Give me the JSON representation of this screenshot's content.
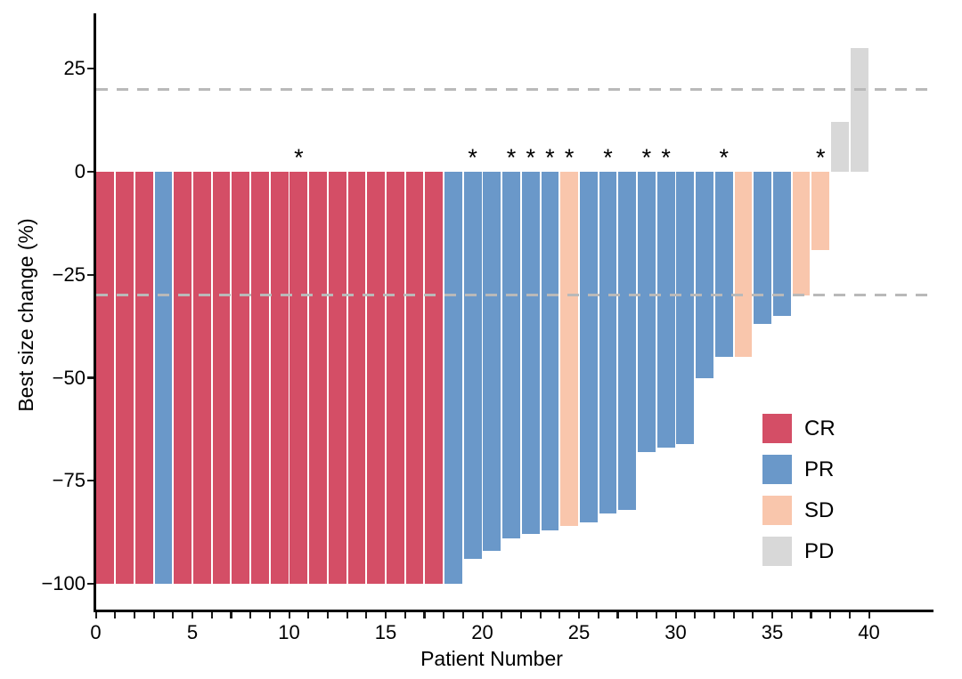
{
  "chart_data": {
    "type": "bar",
    "variant": "waterfall",
    "title": "",
    "xlabel": "Patient Number",
    "ylabel": "Best size change (%)",
    "xlim": [
      0,
      43
    ],
    "ylim": [
      -106,
      38
    ],
    "x_major_ticks": [
      0,
      5,
      10,
      15,
      20,
      25,
      30,
      35,
      40
    ],
    "x_tick_labels": [
      "0",
      "5",
      "10",
      "15",
      "20",
      "25",
      "30",
      "35",
      "40"
    ],
    "x_minor_tick_step": 1,
    "x_minor_tick_max": 40,
    "y_ticks": [
      25,
      0,
      -25,
      -50,
      -75,
      -100
    ],
    "y_tick_labels": [
      "25",
      "0",
      "−25",
      "−50",
      "−75",
      "−100"
    ],
    "grid": false,
    "reference_lines": [
      20,
      -30
    ],
    "reference_line_color": "#b9b9b9",
    "annotation_symbol": "*",
    "legend_position": "inside-right",
    "response_colors": {
      "CR": "#D44E66",
      "PR": "#6A98C9",
      "SD": "#F9C6AC",
      "PD": "#D8D8D8"
    },
    "patients": [
      {
        "patient": 1,
        "change": -100,
        "response": "CR",
        "annotated": false
      },
      {
        "patient": 2,
        "change": -100,
        "response": "CR",
        "annotated": false
      },
      {
        "patient": 3,
        "change": -100,
        "response": "CR",
        "annotated": false
      },
      {
        "patient": 4,
        "change": -100,
        "response": "PR",
        "annotated": false
      },
      {
        "patient": 5,
        "change": -100,
        "response": "CR",
        "annotated": false
      },
      {
        "patient": 6,
        "change": -100,
        "response": "CR",
        "annotated": false
      },
      {
        "patient": 7,
        "change": -100,
        "response": "CR",
        "annotated": false
      },
      {
        "patient": 8,
        "change": -100,
        "response": "CR",
        "annotated": false
      },
      {
        "patient": 9,
        "change": -100,
        "response": "CR",
        "annotated": false
      },
      {
        "patient": 10,
        "change": -100,
        "response": "CR",
        "annotated": false
      },
      {
        "patient": 11,
        "change": -100,
        "response": "CR",
        "annotated": true
      },
      {
        "patient": 12,
        "change": -100,
        "response": "CR",
        "annotated": false
      },
      {
        "patient": 13,
        "change": -100,
        "response": "CR",
        "annotated": false
      },
      {
        "patient": 14,
        "change": -100,
        "response": "CR",
        "annotated": false
      },
      {
        "patient": 15,
        "change": -100,
        "response": "CR",
        "annotated": false
      },
      {
        "patient": 16,
        "change": -100,
        "response": "CR",
        "annotated": false
      },
      {
        "patient": 17,
        "change": -100,
        "response": "CR",
        "annotated": false
      },
      {
        "patient": 18,
        "change": -100,
        "response": "CR",
        "annotated": false
      },
      {
        "patient": 19,
        "change": -100,
        "response": "PR",
        "annotated": false
      },
      {
        "patient": 20,
        "change": -94,
        "response": "PR",
        "annotated": true
      },
      {
        "patient": 21,
        "change": -92,
        "response": "PR",
        "annotated": false
      },
      {
        "patient": 22,
        "change": -89,
        "response": "PR",
        "annotated": true
      },
      {
        "patient": 23,
        "change": -88,
        "response": "PR",
        "annotated": true
      },
      {
        "patient": 24,
        "change": -87,
        "response": "PR",
        "annotated": true
      },
      {
        "patient": 25,
        "change": -86,
        "response": "SD",
        "annotated": true
      },
      {
        "patient": 26,
        "change": -85,
        "response": "PR",
        "annotated": false
      },
      {
        "patient": 27,
        "change": -83,
        "response": "PR",
        "annotated": true
      },
      {
        "patient": 28,
        "change": -82,
        "response": "PR",
        "annotated": false
      },
      {
        "patient": 29,
        "change": -68,
        "response": "PR",
        "annotated": true
      },
      {
        "patient": 30,
        "change": -67,
        "response": "PR",
        "annotated": true
      },
      {
        "patient": 31,
        "change": -66,
        "response": "PR",
        "annotated": false
      },
      {
        "patient": 32,
        "change": -50,
        "response": "PR",
        "annotated": false
      },
      {
        "patient": 33,
        "change": -45,
        "response": "PR",
        "annotated": true
      },
      {
        "patient": 34,
        "change": -45,
        "response": "SD",
        "annotated": false
      },
      {
        "patient": 35,
        "change": -37,
        "response": "PR",
        "annotated": false
      },
      {
        "patient": 36,
        "change": -35,
        "response": "PR",
        "annotated": false
      },
      {
        "patient": 37,
        "change": -30,
        "response": "SD",
        "annotated": false
      },
      {
        "patient": 38,
        "change": -19,
        "response": "SD",
        "annotated": true
      },
      {
        "patient": 39,
        "change": 12,
        "response": "PD",
        "annotated": false
      },
      {
        "patient": 40,
        "change": 30,
        "response": "PD",
        "annotated": false
      }
    ]
  },
  "legend": {
    "items": [
      {
        "label": "CR",
        "color": "#D44E66"
      },
      {
        "label": "PR",
        "color": "#6A98C9"
      },
      {
        "label": "SD",
        "color": "#F9C6AC"
      },
      {
        "label": "PD",
        "color": "#D8D8D8"
      }
    ]
  }
}
